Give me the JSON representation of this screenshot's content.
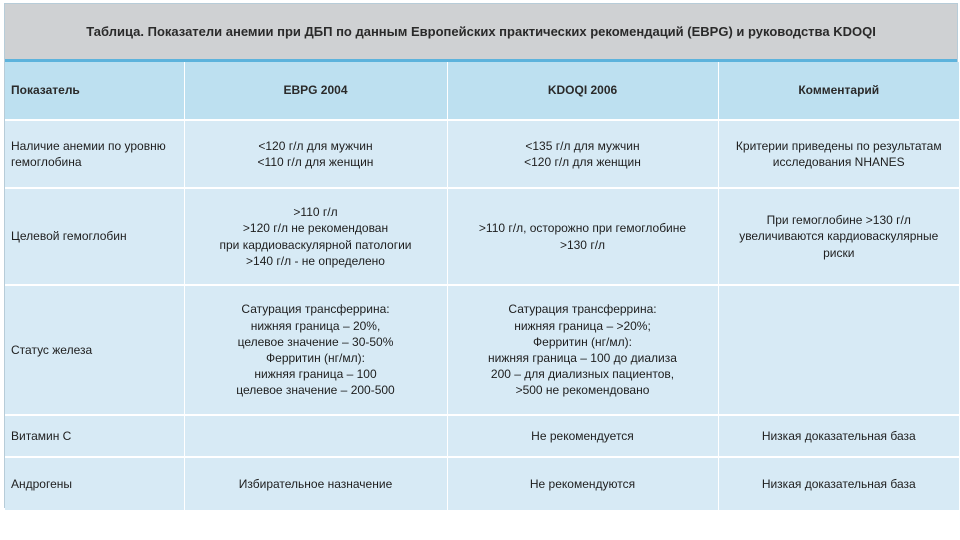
{
  "title": "Таблица. Показатели анемии при ДБП по данным Европейских практических рекомендаций (EBPG) и руководства KDOQI",
  "headers": [
    "Показатель",
    "EBPG 2004",
    "KDOQI 2006",
    "Комментарий"
  ],
  "rows": [
    {
      "label": [
        "Наличие анемии по уровню",
        "гемоглобина"
      ],
      "ebpg": [
        "<120 г/л для мужчин",
        "<110 г/л для женщин"
      ],
      "kdoqi": [
        "<135 г/л для мужчин",
        "<120 г/л для женщин"
      ],
      "comment": [
        "Критерии приведены по результатам",
        "исследования NHANES"
      ]
    },
    {
      "label": [
        "Целевой гемоглобин"
      ],
      "ebpg": [
        ">110 г/л",
        ">120 г/л не рекомендован",
        "при кардиоваскулярной патологии",
        ">140 г/л - не определено"
      ],
      "kdoqi": [
        ">110 г/л, осторожно при гемоглобине",
        ">130 г/л"
      ],
      "comment": [
        "При гемоглобине >130 г/л",
        "увеличиваются кардиоваскулярные",
        "риски"
      ]
    },
    {
      "label": [
        "Статус железа"
      ],
      "ebpg": [
        "Сатурация трансферрина:",
        "нижняя граница – 20%,",
        "целевое значение – 30-50%",
        "Ферритин (нг/мл):",
        "нижняя граница – 100",
        "целевое значение – 200-500"
      ],
      "kdoqi": [
        "Сатурация трансферрина:",
        "нижняя граница – >20%;",
        "Ферритин (нг/мл):",
        "нижняя граница – 100 до диализа",
        "200 – для диализных пациентов,",
        ">500 не рекомендовано"
      ],
      "comment": []
    },
    {
      "label": [
        "Витамин С"
      ],
      "ebpg": [],
      "kdoqi": [
        "Не рекомендуется"
      ],
      "comment": [
        "Низкая доказательная база"
      ]
    },
    {
      "label": [
        "Андрогены"
      ],
      "ebpg": [
        "Избирательное назначение"
      ],
      "kdoqi": [
        "Не рекомендуются"
      ],
      "comment": [
        "Низкая доказательная база"
      ]
    }
  ]
}
